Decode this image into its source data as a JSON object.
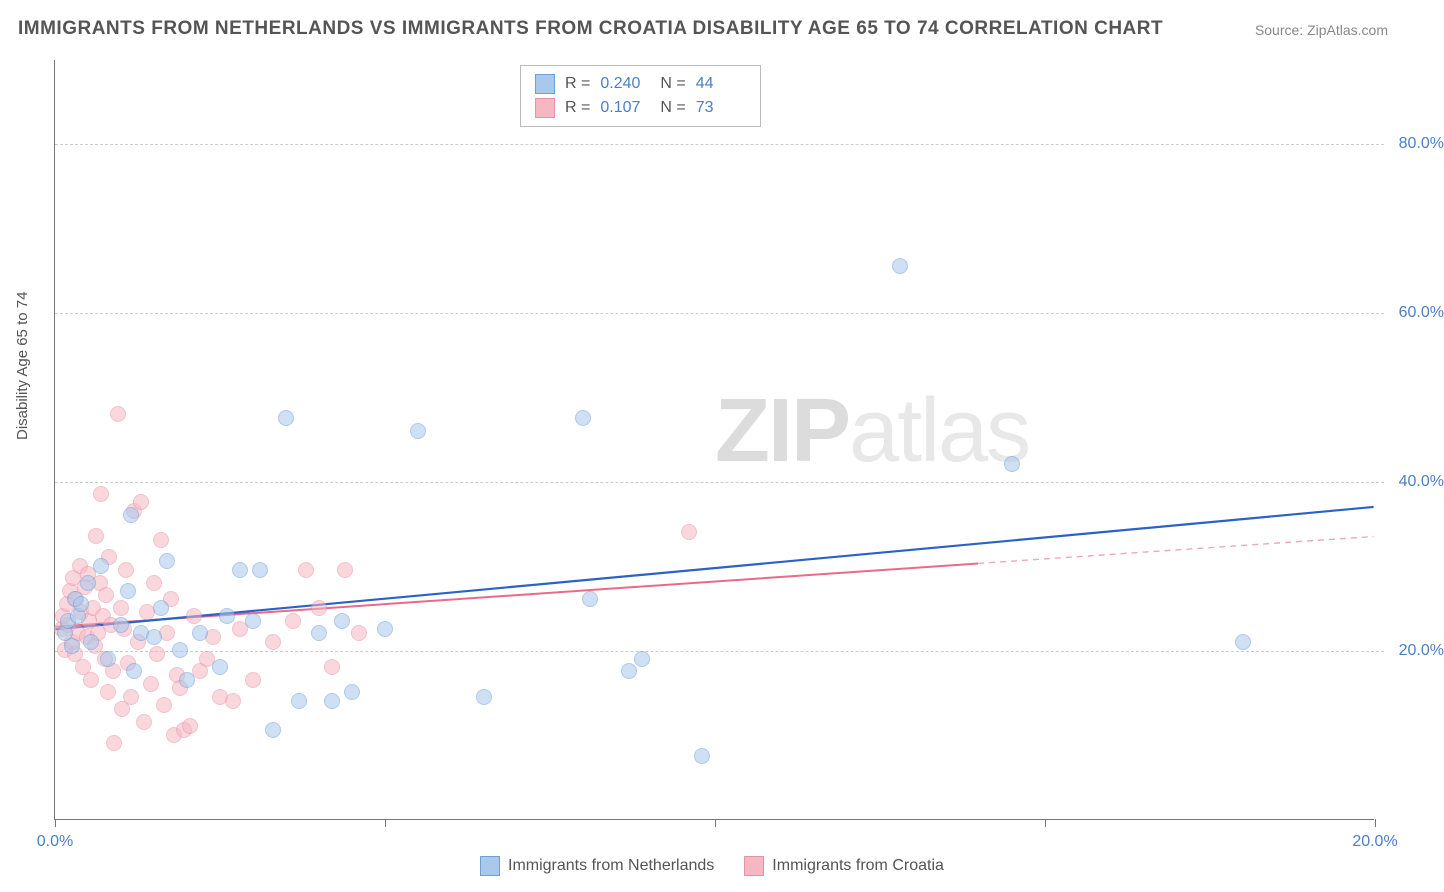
{
  "title": "IMMIGRANTS FROM NETHERLANDS VS IMMIGRANTS FROM CROATIA DISABILITY AGE 65 TO 74 CORRELATION CHART",
  "source": "Source: ZipAtlas.com",
  "ylabel": "Disability Age 65 to 74",
  "watermark_zip": "ZIP",
  "watermark_atlas": "atlas",
  "chart": {
    "type": "scatter",
    "xlim": [
      0,
      20.0
    ],
    "ylim": [
      0,
      90.0
    ],
    "x_ticks": [
      0.0,
      5.0,
      10.0,
      15.0,
      20.0
    ],
    "x_tick_labels": [
      "0.0%",
      "",
      "",
      "",
      "20.0%"
    ],
    "y_ticks": [
      20.0,
      40.0,
      60.0,
      80.0
    ],
    "y_tick_labels": [
      "20.0%",
      "40.0%",
      "60.0%",
      "80.0%"
    ],
    "grid_color": "#d0d0d0",
    "axis_color": "#777777",
    "background_color": "#ffffff",
    "title_fontsize": 19,
    "label_fontsize": 15,
    "tick_fontsize": 16,
    "tick_label_color": "#4a7fc9",
    "point_radius": 8,
    "series": [
      {
        "name": "Immigrants from Netherlands",
        "fill_color": "#a8c8ec",
        "border_color": "#6d9fd9",
        "fill_opacity": 0.55,
        "R": "0.240",
        "N": "44",
        "trend": {
          "x1": 0.0,
          "y1": 22.5,
          "x2": 20.0,
          "y2": 37.0,
          "color": "#2b62c4",
          "width": 2.2,
          "dash": "none"
        },
        "points": [
          [
            0.15,
            22.0
          ],
          [
            0.2,
            23.5
          ],
          [
            0.25,
            20.5
          ],
          [
            0.3,
            26.0
          ],
          [
            0.35,
            24.0
          ],
          [
            0.4,
            25.5
          ],
          [
            0.5,
            28.0
          ],
          [
            0.55,
            21.0
          ],
          [
            0.7,
            30.0
          ],
          [
            0.8,
            19.0
          ],
          [
            1.0,
            23.0
          ],
          [
            1.1,
            27.0
          ],
          [
            1.15,
            36.0
          ],
          [
            1.2,
            17.5
          ],
          [
            1.3,
            22.0
          ],
          [
            1.5,
            21.5
          ],
          [
            1.6,
            25.0
          ],
          [
            1.7,
            30.5
          ],
          [
            1.9,
            20.0
          ],
          [
            2.0,
            16.5
          ],
          [
            2.2,
            22.0
          ],
          [
            2.5,
            18.0
          ],
          [
            2.6,
            24.0
          ],
          [
            2.8,
            29.5
          ],
          [
            3.0,
            23.5
          ],
          [
            3.1,
            29.5
          ],
          [
            3.3,
            10.5
          ],
          [
            3.5,
            47.5
          ],
          [
            3.7,
            14.0
          ],
          [
            4.0,
            22.0
          ],
          [
            4.2,
            14.0
          ],
          [
            4.35,
            23.5
          ],
          [
            4.5,
            15.0
          ],
          [
            5.0,
            22.5
          ],
          [
            5.5,
            46.0
          ],
          [
            6.5,
            14.5
          ],
          [
            8.0,
            47.5
          ],
          [
            8.1,
            26.0
          ],
          [
            8.9,
            19.0
          ],
          [
            8.7,
            17.5
          ],
          [
            9.8,
            7.5
          ],
          [
            12.8,
            65.5
          ],
          [
            14.5,
            42.0
          ],
          [
            18.0,
            21.0
          ]
        ]
      },
      {
        "name": "Immigrants from Croatia",
        "fill_color": "#f5b8c3",
        "border_color": "#e991a6",
        "fill_opacity": 0.55,
        "R": "0.107",
        "N": "73",
        "trend_solid": {
          "x1": 0.0,
          "y1": 22.8,
          "x2": 14.0,
          "y2": 30.3,
          "color": "#e96a8a",
          "width": 2.0
        },
        "trend_dash": {
          "x1": 14.0,
          "y1": 30.3,
          "x2": 20.0,
          "y2": 33.5,
          "color": "#f0a8b8",
          "width": 1.4,
          "dash": "6,5"
        },
        "points": [
          [
            0.1,
            22.5
          ],
          [
            0.12,
            24.0
          ],
          [
            0.15,
            20.0
          ],
          [
            0.18,
            25.5
          ],
          [
            0.2,
            23.0
          ],
          [
            0.22,
            27.0
          ],
          [
            0.25,
            21.0
          ],
          [
            0.28,
            28.5
          ],
          [
            0.3,
            19.5
          ],
          [
            0.32,
            26.0
          ],
          [
            0.35,
            22.0
          ],
          [
            0.38,
            30.0
          ],
          [
            0.4,
            24.5
          ],
          [
            0.42,
            18.0
          ],
          [
            0.45,
            27.5
          ],
          [
            0.48,
            21.5
          ],
          [
            0.5,
            29.0
          ],
          [
            0.52,
            23.5
          ],
          [
            0.55,
            16.5
          ],
          [
            0.58,
            25.0
          ],
          [
            0.6,
            20.5
          ],
          [
            0.62,
            33.5
          ],
          [
            0.65,
            22.0
          ],
          [
            0.68,
            28.0
          ],
          [
            0.7,
            38.5
          ],
          [
            0.72,
            24.0
          ],
          [
            0.75,
            19.0
          ],
          [
            0.78,
            26.5
          ],
          [
            0.8,
            15.0
          ],
          [
            0.82,
            31.0
          ],
          [
            0.85,
            23.0
          ],
          [
            0.88,
            17.5
          ],
          [
            0.9,
            9.0
          ],
          [
            0.95,
            48.0
          ],
          [
            1.0,
            25.0
          ],
          [
            1.02,
            13.0
          ],
          [
            1.05,
            22.5
          ],
          [
            1.08,
            29.5
          ],
          [
            1.1,
            18.5
          ],
          [
            1.15,
            14.5
          ],
          [
            1.2,
            36.5
          ],
          [
            1.25,
            21.0
          ],
          [
            1.3,
            37.5
          ],
          [
            1.35,
            11.5
          ],
          [
            1.4,
            24.5
          ],
          [
            1.45,
            16.0
          ],
          [
            1.5,
            28.0
          ],
          [
            1.55,
            19.5
          ],
          [
            1.6,
            33.0
          ],
          [
            1.65,
            13.5
          ],
          [
            1.7,
            22.0
          ],
          [
            1.75,
            26.0
          ],
          [
            1.8,
            10.0
          ],
          [
            1.85,
            17.0
          ],
          [
            1.9,
            15.5
          ],
          [
            1.95,
            10.5
          ],
          [
            2.05,
            11.0
          ],
          [
            2.1,
            24.0
          ],
          [
            2.2,
            17.5
          ],
          [
            2.3,
            19.0
          ],
          [
            2.4,
            21.5
          ],
          [
            2.5,
            14.5
          ],
          [
            2.7,
            14.0
          ],
          [
            2.8,
            22.5
          ],
          [
            3.0,
            16.5
          ],
          [
            3.3,
            21.0
          ],
          [
            3.6,
            23.5
          ],
          [
            3.8,
            29.5
          ],
          [
            4.0,
            25.0
          ],
          [
            4.2,
            18.0
          ],
          [
            4.4,
            29.5
          ],
          [
            4.6,
            22.0
          ],
          [
            9.6,
            34.0
          ]
        ]
      }
    ]
  },
  "stats_box": {
    "rows": [
      {
        "swatch_fill": "#a8c8ec",
        "swatch_border": "#6d9fd9",
        "R_label": "R =",
        "R": "0.240",
        "N_label": "N =",
        "N": "44"
      },
      {
        "swatch_fill": "#f5b8c3",
        "swatch_border": "#e991a6",
        "R_label": "R =",
        "R": "0.107",
        "N_label": "N =",
        "N": "73"
      }
    ]
  },
  "bottom_legend": [
    {
      "swatch_fill": "#a8c8ec",
      "swatch_border": "#6d9fd9",
      "label": "Immigrants from Netherlands"
    },
    {
      "swatch_fill": "#f5b8c3",
      "swatch_border": "#e991a6",
      "label": "Immigrants from Croatia"
    }
  ]
}
